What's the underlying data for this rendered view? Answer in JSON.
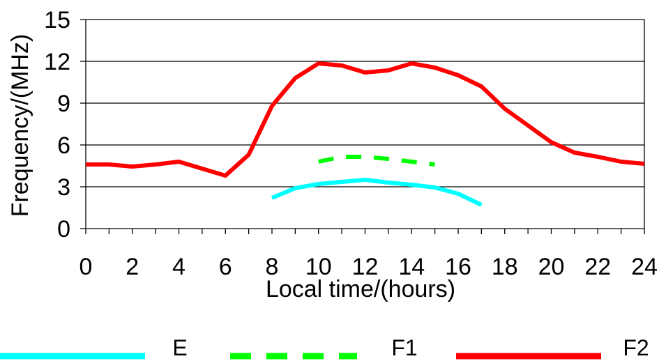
{
  "chart_data": {
    "type": "line",
    "title": "",
    "xlabel": "Local time/(hours)",
    "ylabel": "Frequency/(MHz)",
    "xlim": [
      0,
      24
    ],
    "ylim": [
      0,
      15
    ],
    "x_ticks": [
      0,
      2,
      4,
      6,
      8,
      10,
      12,
      14,
      16,
      18,
      20,
      22,
      24
    ],
    "y_ticks": [
      0,
      3,
      6,
      9,
      12,
      15
    ],
    "grid": "horizontal",
    "legend_position": "bottom",
    "series": [
      {
        "name": "E",
        "color": "#00FFFF",
        "style": "solid",
        "x": [
          8,
          9,
          10,
          11,
          12,
          13,
          14,
          15,
          16,
          17
        ],
        "y": [
          2.2,
          2.9,
          3.2,
          3.35,
          3.5,
          3.3,
          3.15,
          2.95,
          2.5,
          1.7
        ]
      },
      {
        "name": "F1",
        "color": "#00FF00",
        "style": "dashed",
        "x": [
          10,
          11,
          12,
          13,
          14,
          15
        ],
        "y": [
          4.8,
          5.15,
          5.15,
          5.0,
          4.8,
          4.6
        ]
      },
      {
        "name": "F2",
        "color": "#FF0000",
        "style": "solid",
        "x": [
          0,
          1,
          2,
          3,
          4,
          5,
          6,
          7,
          8,
          9,
          10,
          11,
          12,
          13,
          14,
          15,
          16,
          17,
          18,
          19,
          20,
          21,
          22,
          23,
          24
        ],
        "y": [
          4.6,
          4.6,
          4.45,
          4.6,
          4.8,
          4.3,
          3.8,
          5.3,
          8.8,
          10.8,
          11.85,
          11.7,
          11.2,
          11.35,
          11.85,
          11.55,
          11.0,
          10.2,
          8.6,
          7.4,
          6.2,
          5.45,
          5.15,
          4.8,
          4.65
        ]
      }
    ]
  }
}
